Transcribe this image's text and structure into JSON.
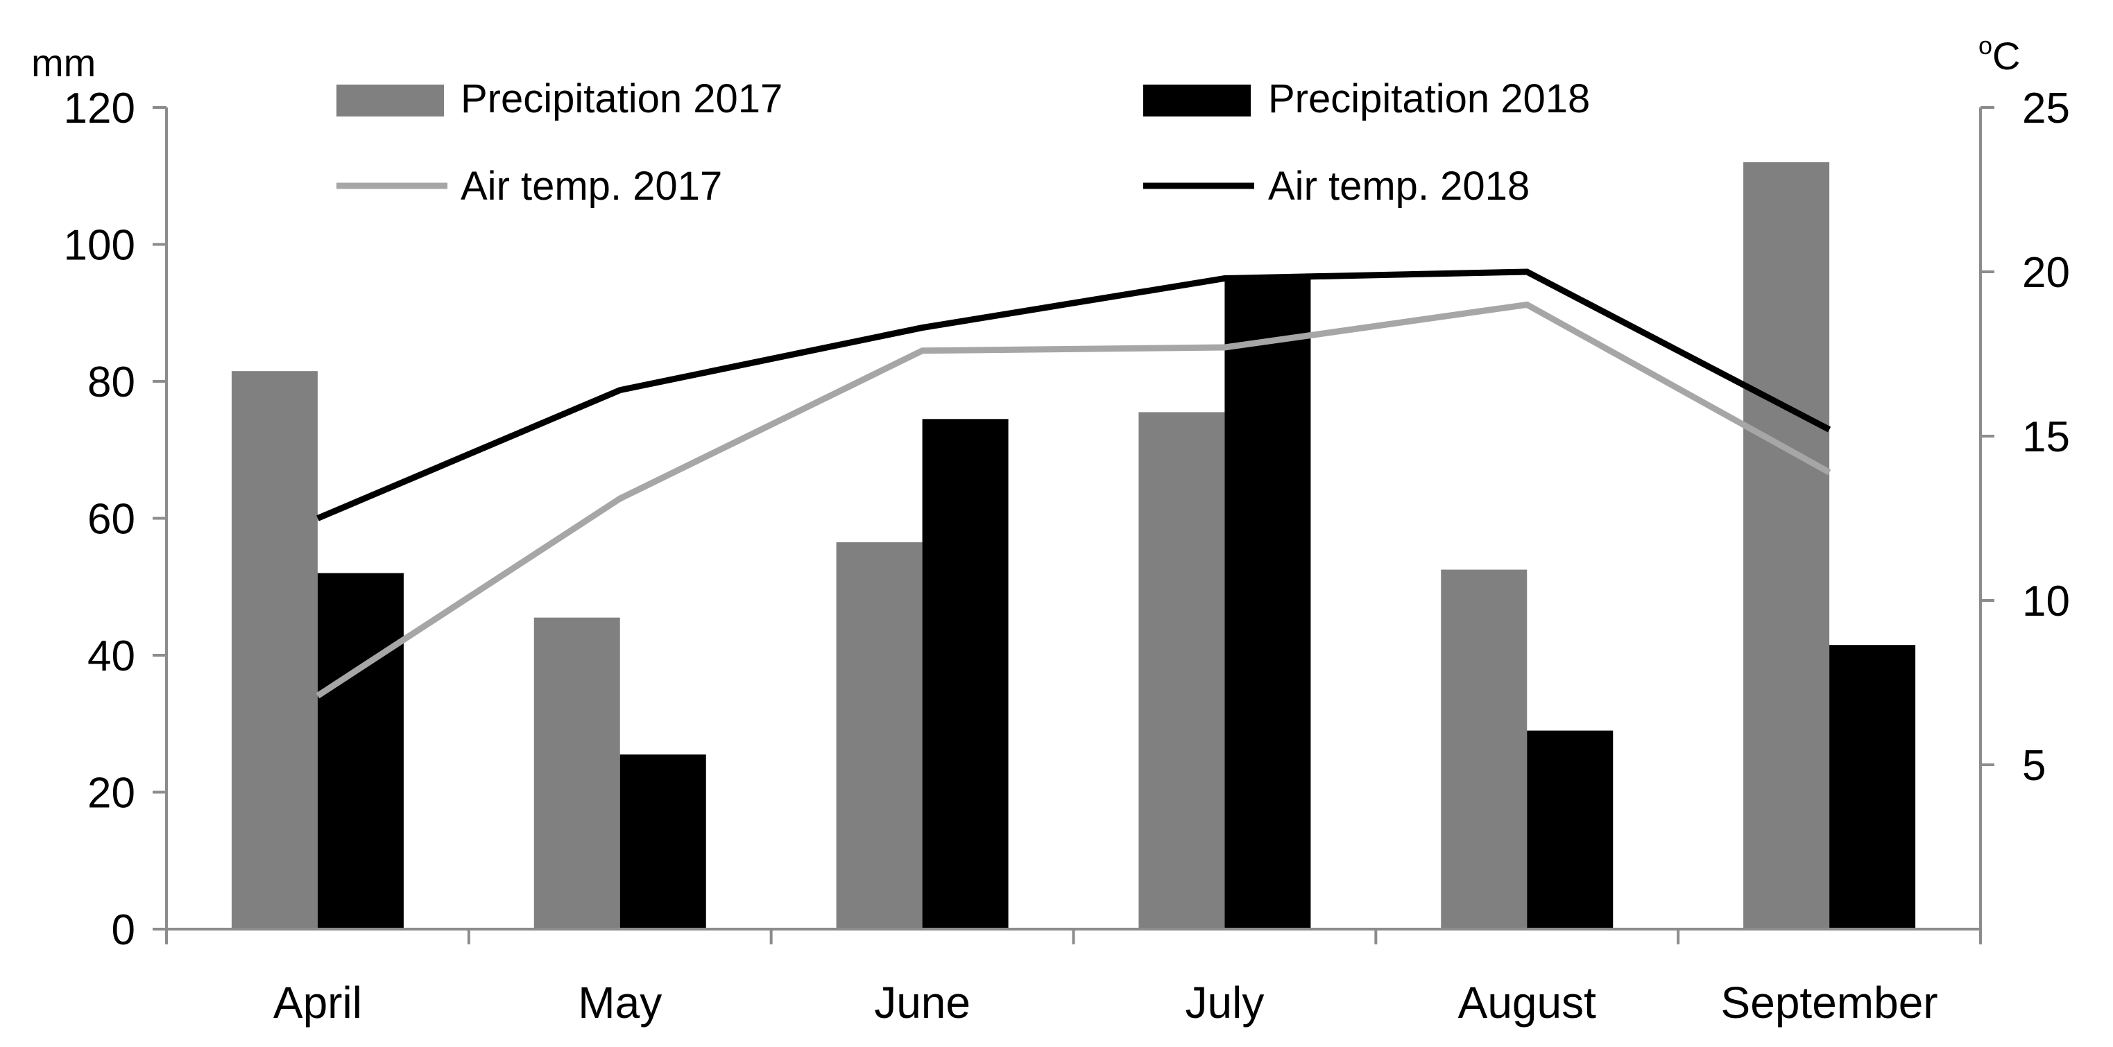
{
  "chart_data": {
    "type": "bar",
    "categories": [
      "April",
      "May",
      "June",
      "July",
      "August",
      "September"
    ],
    "series": [
      {
        "name": "Precipitation 2017",
        "kind": "bar",
        "axis": "left",
        "color": "#808080",
        "values": [
          81.5,
          45.5,
          56.5,
          75.5,
          52.5,
          112.0
        ]
      },
      {
        "name": "Precipitation 2018",
        "kind": "bar",
        "axis": "left",
        "color": "#000000",
        "values": [
          52.0,
          25.5,
          74.5,
          95.0,
          29.0,
          41.5
        ]
      },
      {
        "name": "Air temp. 2017",
        "kind": "line",
        "axis": "right",
        "color": "#a6a6a6",
        "values": [
          7.1,
          13.1,
          17.6,
          17.7,
          19.0,
          13.9
        ]
      },
      {
        "name": "Air temp. 2018",
        "kind": "line",
        "axis": "right",
        "color": "#000000",
        "values": [
          12.5,
          16.4,
          18.3,
          19.8,
          20.0,
          15.2
        ]
      }
    ],
    "y_left": {
      "label": "mm",
      "range": [
        0,
        120
      ],
      "ticks": [
        "0",
        "20",
        "40",
        "60",
        "80",
        "100",
        "120"
      ]
    },
    "y_right": {
      "label_base": "C",
      "label_super": "o",
      "range": [
        0,
        25
      ],
      "ticks": [
        "5",
        "10",
        "15",
        "20",
        "25"
      ]
    },
    "legend_position": "top"
  }
}
